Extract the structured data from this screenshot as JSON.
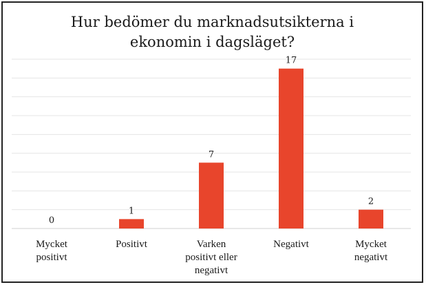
{
  "chart_data": {
    "type": "bar",
    "title": "Hur bedömer du marknadsutsikterna i\nekonomin i dagsläget?",
    "xlabel": "",
    "ylabel": "",
    "categories": [
      "Mycket\npositivt",
      "Positivt",
      "Varken\npositivt eller\nnegativt",
      "Negativt",
      "Mycket\nnegativt"
    ],
    "values": [
      0,
      1,
      7,
      17,
      2
    ],
    "data_labels": [
      "0",
      "1",
      "7",
      "17",
      "2"
    ],
    "ylim": [
      0,
      18
    ],
    "grid": true,
    "bar_color": "#e8452c",
    "legend": "none"
  }
}
